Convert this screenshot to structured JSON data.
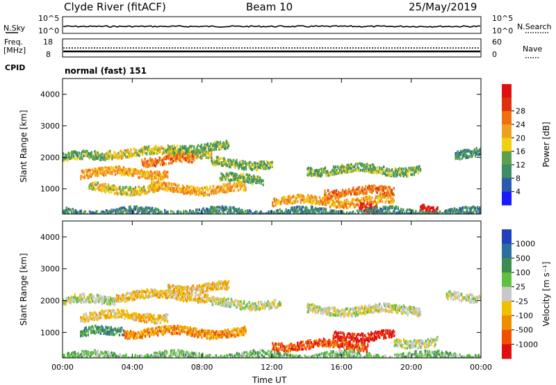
{
  "header": {
    "station": "Clyde River (fitACF)",
    "beam": "Beam 10",
    "date": "25/May/2019"
  },
  "top_panels": {
    "nsky": {
      "label": "N.Sky",
      "ticks": [
        "10^5",
        "10^0"
      ]
    },
    "nsearch": {
      "label": "N.Search",
      "ticks": [
        "10^5",
        "10^0"
      ]
    },
    "freq": {
      "label_line1": "Freq.",
      "label_line2": "[MHz]",
      "ticks": [
        "18",
        "8"
      ]
    },
    "nave": {
      "label": "Nave",
      "ticks": [
        "60",
        "0"
      ]
    },
    "cpid": {
      "label": "CPID",
      "value": "normal (fast) 151"
    }
  },
  "chart_data": [
    {
      "type": "heatmap",
      "name": "power",
      "xlabel": "",
      "ylabel": "Slant Range [km]",
      "x_ticks": [
        "00:00",
        "04:00",
        "08:00",
        "12:00",
        "16:00",
        "20:00",
        "00:00"
      ],
      "y_ticks": [
        "1000",
        "2000",
        "3000",
        "4000"
      ],
      "ylim": [
        200,
        4500
      ],
      "colorbar": {
        "label": "Power [dB]",
        "ticks": [
          "4",
          "8",
          "12",
          "16",
          "20",
          "24",
          "28"
        ],
        "colors": [
          "#1a1aff",
          "#2a5ab0",
          "#3c8c64",
          "#5aa050",
          "#f0d010",
          "#f0a020",
          "#f07010",
          "#e03010",
          "#e01010"
        ]
      },
      "bands": [
        {
          "t0": 0.0,
          "t1": 2.5,
          "r": 2000,
          "level": 3
        },
        {
          "t0": 2.5,
          "t1": 8.5,
          "r": 2150,
          "level": 4
        },
        {
          "t0": 6.0,
          "t1": 9.5,
          "r": 2300,
          "level": 3
        },
        {
          "t0": 8.5,
          "t1": 12.0,
          "r": 1800,
          "level": 3
        },
        {
          "t0": 1.0,
          "t1": 6.0,
          "r": 1500,
          "level": 5
        },
        {
          "t0": 4.5,
          "t1": 7.5,
          "r": 1900,
          "level": 6
        },
        {
          "t0": 1.5,
          "t1": 5.5,
          "r": 1000,
          "level": 4
        },
        {
          "t0": 5.0,
          "t1": 10.5,
          "r": 1000,
          "level": 5
        },
        {
          "t0": 9.0,
          "t1": 11.5,
          "r": 1300,
          "level": 3
        },
        {
          "t0": 12.0,
          "t1": 19.0,
          "r": 600,
          "level": 5
        },
        {
          "t0": 15.0,
          "t1": 19.0,
          "r": 900,
          "level": 6
        },
        {
          "t0": 14.0,
          "t1": 20.5,
          "r": 1600,
          "level": 3
        },
        {
          "t0": 17.0,
          "t1": 18.0,
          "r": 400,
          "level": 8
        },
        {
          "t0": 20.5,
          "t1": 21.5,
          "r": 300,
          "level": 8
        },
        {
          "t0": 22.5,
          "t1": 24.0,
          "r": 2100,
          "level": 2
        },
        {
          "t0": 0.0,
          "t1": 24.0,
          "r": 230,
          "level": 2
        }
      ]
    },
    {
      "type": "heatmap",
      "name": "velocity",
      "xlabel": "Time UT",
      "ylabel": "Slant Range [km]",
      "x_ticks": [
        "00:00",
        "04:00",
        "08:00",
        "12:00",
        "16:00",
        "20:00",
        "00:00"
      ],
      "y_ticks": [
        "1000",
        "2000",
        "3000",
        "4000"
      ],
      "ylim": [
        200,
        4500
      ],
      "colorbar": {
        "label": "Velocity [m s⁻¹]",
        "ticks": [
          "1000",
          "500",
          "100",
          "25",
          "-25",
          "-100",
          "-500",
          "-1000"
        ],
        "colors": [
          "#2040c0",
          "#2d6ea0",
          "#3c8c50",
          "#60c040",
          "#c8c8c8",
          "#f0c000",
          "#f08c00",
          "#f05000",
          "#e01010"
        ]
      },
      "bands": [
        {
          "t0": 0.0,
          "t1": 3.0,
          "r": 2000,
          "level": 4
        },
        {
          "t0": 3.0,
          "t1": 8.5,
          "r": 2150,
          "level": 5
        },
        {
          "t0": 6.0,
          "t1": 9.5,
          "r": 2400,
          "level": 5
        },
        {
          "t0": 8.5,
          "t1": 12.5,
          "r": 1900,
          "level": 4
        },
        {
          "t0": 1.0,
          "t1": 6.0,
          "r": 1500,
          "level": 5
        },
        {
          "t0": 1.0,
          "t1": 3.5,
          "r": 1000,
          "level": 2
        },
        {
          "t0": 3.5,
          "t1": 10.5,
          "r": 1000,
          "level": 6
        },
        {
          "t0": 12.0,
          "t1": 17.5,
          "r": 600,
          "level": 7
        },
        {
          "t0": 15.5,
          "t1": 19.0,
          "r": 900,
          "level": 8
        },
        {
          "t0": 14.0,
          "t1": 20.5,
          "r": 1700,
          "level": 4
        },
        {
          "t0": 19.0,
          "t1": 21.5,
          "r": 700,
          "level": 4
        },
        {
          "t0": 22.0,
          "t1": 24.0,
          "r": 2100,
          "level": 4
        },
        {
          "t0": 0.0,
          "t1": 24.0,
          "r": 230,
          "level": 3
        }
      ]
    }
  ]
}
